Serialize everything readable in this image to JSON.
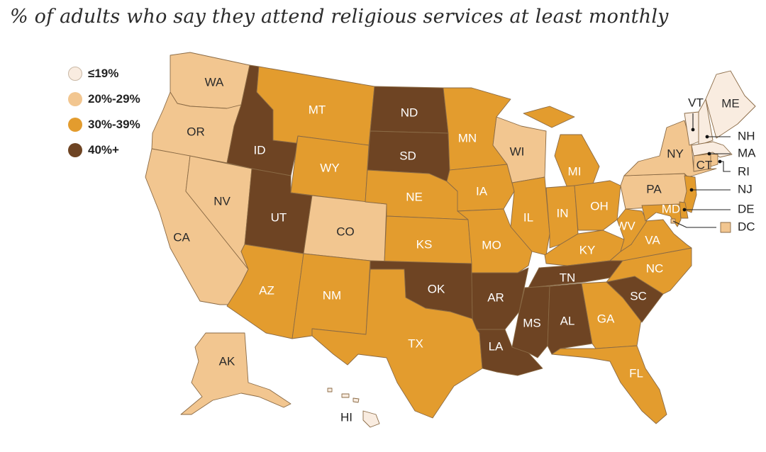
{
  "title": "% of adults who say they attend religious services at least monthly",
  "legend": [
    {
      "label": "≤19%",
      "color": "#f9ece0"
    },
    {
      "label": "20%-29%",
      "color": "#f2c690"
    },
    {
      "label": "30%-39%",
      "color": "#e39c2e"
    },
    {
      "label": "40%+",
      "color": "#6e4423"
    }
  ],
  "states": {
    "WA": {
      "name": "WA",
      "bin": 1
    },
    "OR": {
      "name": "OR",
      "bin": 1
    },
    "CA": {
      "name": "CA",
      "bin": 1
    },
    "NV": {
      "name": "NV",
      "bin": 1
    },
    "ID": {
      "name": "ID",
      "bin": 3
    },
    "MT": {
      "name": "MT",
      "bin": 2
    },
    "WY": {
      "name": "WY",
      "bin": 2
    },
    "UT": {
      "name": "UT",
      "bin": 3
    },
    "CO": {
      "name": "CO",
      "bin": 1
    },
    "AZ": {
      "name": "AZ",
      "bin": 2
    },
    "NM": {
      "name": "NM",
      "bin": 2
    },
    "ND": {
      "name": "ND",
      "bin": 3
    },
    "SD": {
      "name": "SD",
      "bin": 3
    },
    "NE": {
      "name": "NE",
      "bin": 2
    },
    "KS": {
      "name": "KS",
      "bin": 2
    },
    "OK": {
      "name": "OK",
      "bin": 3
    },
    "TX": {
      "name": "TX",
      "bin": 2
    },
    "MN": {
      "name": "MN",
      "bin": 2
    },
    "IA": {
      "name": "IA",
      "bin": 2
    },
    "MO": {
      "name": "MO",
      "bin": 2
    },
    "AR": {
      "name": "AR",
      "bin": 3
    },
    "LA": {
      "name": "LA",
      "bin": 3
    },
    "WI": {
      "name": "WI",
      "bin": 1
    },
    "IL": {
      "name": "IL",
      "bin": 2
    },
    "MI": {
      "name": "MI",
      "bin": 2
    },
    "IN": {
      "name": "IN",
      "bin": 2
    },
    "OH": {
      "name": "OH",
      "bin": 2
    },
    "KY": {
      "name": "KY",
      "bin": 2
    },
    "TN": {
      "name": "TN",
      "bin": 3
    },
    "MS": {
      "name": "MS",
      "bin": 3
    },
    "AL": {
      "name": "AL",
      "bin": 3
    },
    "GA": {
      "name": "GA",
      "bin": 2
    },
    "FL": {
      "name": "FL",
      "bin": 2
    },
    "SC": {
      "name": "SC",
      "bin": 3
    },
    "NC": {
      "name": "NC",
      "bin": 2
    },
    "VA": {
      "name": "VA",
      "bin": 2
    },
    "WV": {
      "name": "WV",
      "bin": 2
    },
    "PA": {
      "name": "PA",
      "bin": 1
    },
    "NY": {
      "name": "NY",
      "bin": 1
    },
    "VT": {
      "name": "VT",
      "bin": 0
    },
    "NH": {
      "name": "NH",
      "bin": 0
    },
    "ME": {
      "name": "ME",
      "bin": 0
    },
    "MA": {
      "name": "MA",
      "bin": 0
    },
    "CT": {
      "name": "CT",
      "bin": 1
    },
    "RI": {
      "name": "RI",
      "bin": 1
    },
    "NJ": {
      "name": "NJ",
      "bin": 2
    },
    "DE": {
      "name": "DE",
      "bin": 2
    },
    "MD": {
      "name": "MD",
      "bin": 2
    },
    "DC": {
      "name": "DC",
      "bin": 1
    },
    "AK": {
      "name": "AK",
      "bin": 1
    },
    "HI": {
      "name": "HI",
      "bin": 0
    }
  }
}
